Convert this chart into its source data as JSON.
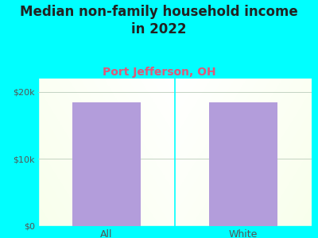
{
  "title": "Median non-family household income\nin 2022",
  "subtitle": "Port Jefferson, OH",
  "categories": [
    "All",
    "White"
  ],
  "values": [
    18500,
    18500
  ],
  "bar_color": "#b39ddb",
  "background_color": "#00FFFF",
  "plot_bg_color_left": "#d8edcf",
  "plot_bg_color_right": "#e8f5e0",
  "plot_bg_color_center": "#f8fdf5",
  "title_fontsize": 12,
  "subtitle_fontsize": 10,
  "subtitle_color": "#e05878",
  "title_color": "#222222",
  "tick_label_color": "#555555",
  "ylim": [
    0,
    22000
  ],
  "yticks": [
    0,
    10000,
    20000
  ],
  "ytick_labels": [
    "$0",
    "$10k",
    "$20k"
  ],
  "bar_width": 0.5,
  "grid_color": "#bbccbb",
  "divider_color": "#00FFFF",
  "border_color": "#00FFFF"
}
